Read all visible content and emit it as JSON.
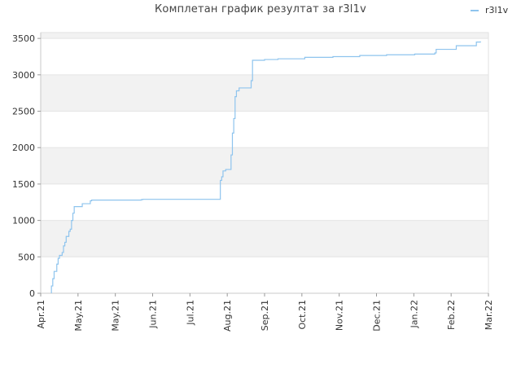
{
  "chart_data": {
    "type": "line",
    "title": "Комплетан график резултат за r3l1v",
    "xlabel": "",
    "ylabel": "",
    "x_ticks": [
      "Apr.21",
      "May.21",
      "May.21",
      "Jun.21",
      "Jul.21",
      "Aug.21",
      "Sep.21",
      "Oct.21",
      "Nov.21",
      "Dec.21",
      "Jan.22",
      "Feb.22",
      "Mar.22"
    ],
    "y_ticks": [
      0,
      500,
      1000,
      1500,
      2000,
      2500,
      3000,
      3500
    ],
    "ylim": [
      0,
      3580
    ],
    "xlim": [
      "2021-04-01",
      "2022-03-01"
    ],
    "grid": "horizontal bands",
    "legend_position": "top-right",
    "series": [
      {
        "name": "r3l1v",
        "color": "#8ec4ee",
        "step": true,
        "points": [
          [
            "2021-04-09",
            0
          ],
          [
            "2021-04-09",
            100
          ],
          [
            "2021-04-10",
            200
          ],
          [
            "2021-04-11",
            300
          ],
          [
            "2021-04-13",
            400
          ],
          [
            "2021-04-14",
            480
          ],
          [
            "2021-04-15",
            520
          ],
          [
            "2021-04-17",
            560
          ],
          [
            "2021-04-18",
            650
          ],
          [
            "2021-04-19",
            700
          ],
          [
            "2021-04-20",
            780
          ],
          [
            "2021-04-22",
            850
          ],
          [
            "2021-04-23",
            880
          ],
          [
            "2021-04-24",
            1000
          ],
          [
            "2021-04-25",
            1100
          ],
          [
            "2021-04-26",
            1190
          ],
          [
            "2021-05-02",
            1230
          ],
          [
            "2021-05-08",
            1270
          ],
          [
            "2021-05-09",
            1280
          ],
          [
            "2021-06-15",
            1285
          ],
          [
            "2021-06-16",
            1290
          ],
          [
            "2021-08-13",
            1290
          ],
          [
            "2021-08-13",
            1550
          ],
          [
            "2021-08-14",
            1600
          ],
          [
            "2021-08-15",
            1680
          ],
          [
            "2021-08-17",
            1700
          ],
          [
            "2021-08-21",
            1730
          ],
          [
            "2021-08-21",
            1900
          ],
          [
            "2021-08-22",
            2200
          ],
          [
            "2021-08-23",
            2400
          ],
          [
            "2021-08-24",
            2700
          ],
          [
            "2021-08-25",
            2780
          ],
          [
            "2021-08-27",
            2820
          ],
          [
            "2021-09-05",
            2920
          ],
          [
            "2021-09-06",
            3200
          ],
          [
            "2021-09-15",
            3210
          ],
          [
            "2021-09-25",
            3220
          ],
          [
            "2021-10-15",
            3240
          ],
          [
            "2021-11-05",
            3250
          ],
          [
            "2021-11-25",
            3265
          ],
          [
            "2021-12-15",
            3275
          ],
          [
            "2022-01-05",
            3285
          ],
          [
            "2022-01-20",
            3300
          ],
          [
            "2022-01-21",
            3350
          ],
          [
            "2022-02-05",
            3400
          ],
          [
            "2022-02-20",
            3450
          ],
          [
            "2022-02-23",
            3460
          ]
        ]
      }
    ]
  }
}
